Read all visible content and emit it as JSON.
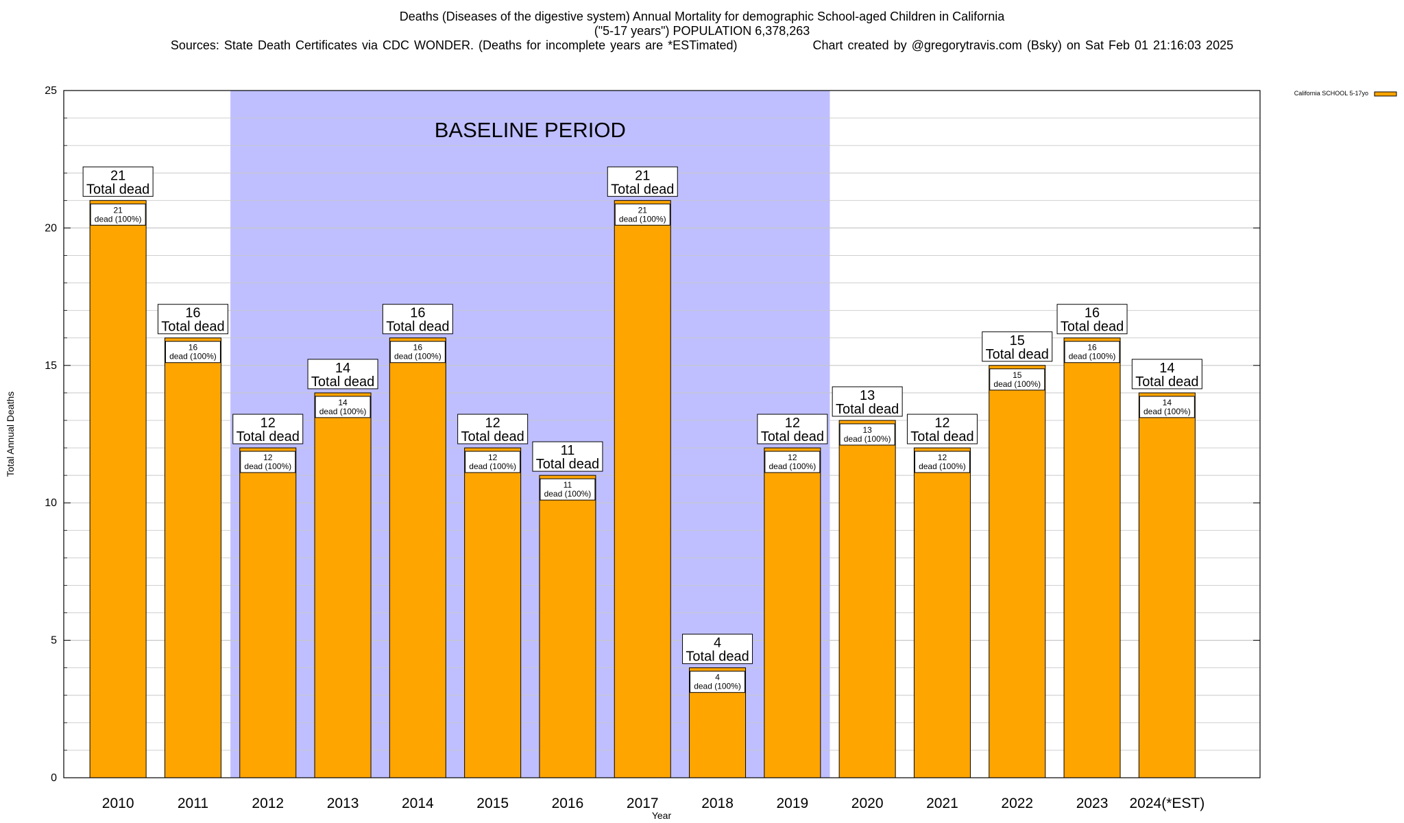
{
  "header": {
    "line1": "Deaths (Diseases of the digestive system) Annual Mortality for demographic School-aged Children in California",
    "line2": "(\"5-17 years\") POPULATION 6,378,263",
    "line3_left": "Sources: State Death Certificates via CDC WONDER. (Deaths for incomplete years are *ESTimated)",
    "line3_right": "Chart created by @gregorytravis.com (Bsky) on Sat Feb 01 21:16:03 2025"
  },
  "colors": {
    "bar": "#FFA500",
    "baseline_band": "#BFBFFF",
    "grid": "#C8C8C8"
  },
  "chart_data": {
    "type": "bar",
    "title": "Deaths (Diseases of the digestive system) Annual Mortality for demographic School-aged Children in California",
    "xlabel": "Year",
    "ylabel": "Total Annual Deaths",
    "ylim": [
      0,
      25
    ],
    "yticks": [
      0,
      5,
      10,
      15,
      20,
      25
    ],
    "grid": true,
    "legend": {
      "label": "California SCHOOL 5-17yo",
      "position": "top-right"
    },
    "categories": [
      "2010",
      "2011",
      "2012",
      "2013",
      "2014",
      "2015",
      "2016",
      "2017",
      "2018",
      "2019",
      "2020",
      "2021",
      "2022",
      "2023",
      "2024(*EST)"
    ],
    "series": [
      {
        "name": "California SCHOOL 5-17yo",
        "values": [
          21,
          16,
          12,
          14,
          16,
          12,
          11,
          21,
          4,
          12,
          13,
          12,
          15,
          16,
          14
        ]
      }
    ],
    "label_total_suffix": "Total dead",
    "label_detail_suffix": "dead (100%)",
    "baseline": {
      "label": "BASELINE PERIOD",
      "start": "2012",
      "end": "2019"
    }
  }
}
